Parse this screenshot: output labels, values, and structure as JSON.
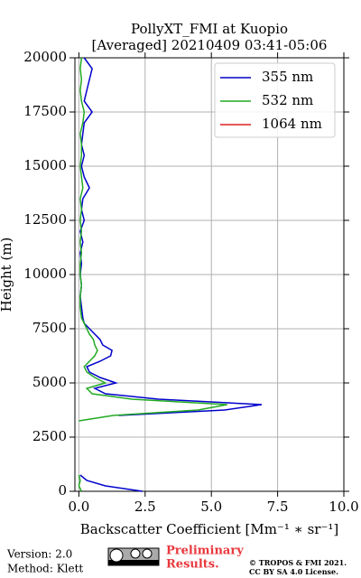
{
  "chart_data": {
    "type": "line",
    "title": "PollyXT_FMI at Kuopio",
    "subtitle": "[Averaged] 20210409 03:41-05:06",
    "x_label": "Backscatter Coefficient [Mm⁻¹ ∗ sr⁻¹]",
    "y_label": "Height (m)",
    "y": [
      0,
      250,
      500,
      750,
      1000,
      3250,
      3500,
      3750,
      4000,
      4250,
      4500,
      4750,
      5000,
      5250,
      5500,
      5750,
      6000,
      6250,
      6500,
      6750,
      7000,
      7250,
      7500,
      7750,
      8000,
      8500,
      9000,
      9500,
      10000,
      10500,
      11000,
      11500,
      12000,
      12500,
      13000,
      13500,
      14000,
      14500,
      15000,
      15500,
      16000,
      16500,
      17000,
      17500,
      18000,
      18500,
      19000,
      19500,
      20000
    ],
    "series": [
      {
        "name": "355 nm",
        "color": "#0000cc",
        "values": [
          2.4,
          1.0,
          0.3,
          0.05,
          null,
          null,
          1.5,
          5.5,
          6.9,
          3.0,
          1.0,
          0.6,
          1.4,
          0.8,
          0.4,
          0.3,
          0.8,
          1.2,
          1.25,
          0.9,
          0.8,
          0.6,
          0.4,
          0.2,
          0.15,
          0.1,
          0.05,
          0.1,
          0.05,
          0.1,
          0.05,
          0.15,
          0.05,
          0.2,
          0.1,
          0.15,
          0.4,
          0.2,
          0.1,
          0.2,
          0.1,
          0.15,
          0.2,
          0.5,
          0.2,
          0.3,
          0.4,
          0.5,
          0.2
        ]
      },
      {
        "name": "532 nm",
        "color": "#22aa22",
        "values": [
          0.1,
          0.0,
          0.05,
          0.0,
          null,
          0.0,
          1.3,
          4.5,
          5.6,
          2.0,
          0.5,
          0.3,
          1.0,
          0.6,
          0.3,
          0.2,
          0.4,
          0.6,
          0.7,
          0.6,
          0.55,
          0.4,
          0.3,
          0.2,
          0.1,
          0.05,
          0.05,
          0.1,
          0.05,
          0.05,
          0.1,
          0.05,
          0.1,
          0.05,
          0.1,
          0.05,
          0.15,
          0.1,
          0.05,
          0.1,
          0.1,
          0.05,
          0.15,
          0.2,
          0.1,
          0.05,
          0.1,
          0.05,
          0.1
        ]
      },
      {
        "name": "1064 nm",
        "color": "#dd2222",
        "values": [
          null,
          null,
          null,
          null,
          null,
          null,
          null,
          null,
          null,
          null,
          null,
          null,
          null,
          null,
          null,
          null,
          null,
          null,
          null,
          null,
          null,
          null,
          null,
          null,
          null,
          null,
          null,
          null,
          null,
          null,
          null,
          null,
          null,
          null,
          null,
          null,
          null,
          null,
          null,
          null,
          null,
          null,
          null,
          null,
          null,
          null,
          null,
          null,
          null
        ]
      }
    ],
    "xlim": [
      -0.15,
      10
    ],
    "xticks": [
      {
        "value": 0,
        "label": "0.0"
      },
      2.5,
      {
        "value": 5,
        "label": "5.0"
      },
      7.5,
      {
        "value": 10,
        "label": "10.0"
      }
    ],
    "ylim": [
      0,
      20000
    ],
    "yticks": [
      0,
      2500,
      5000,
      7500,
      10000,
      12500,
      15000,
      17500,
      20000
    ],
    "grid": true,
    "legend": "upper right"
  },
  "footer": {
    "version": "Version: 2.0",
    "method": "Method: Klett",
    "notice": [
      "Preliminary",
      "Results."
    ],
    "license": [
      "© TROPOS & FMI 2021.",
      "CC BY SA 4.0 License."
    ]
  }
}
